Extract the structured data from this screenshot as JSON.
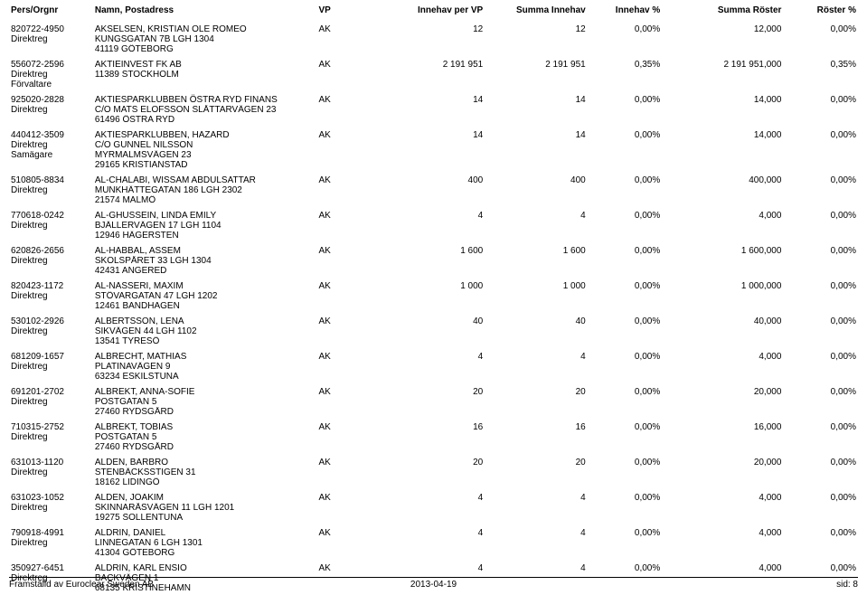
{
  "columns": [
    {
      "key": "pers",
      "label": "Pers/Orgnr",
      "align": "left"
    },
    {
      "key": "namn",
      "label": "Namn, Postadress",
      "align": "left"
    },
    {
      "key": "vp",
      "label": "VP",
      "align": "left"
    },
    {
      "key": "innehav_per_vp",
      "label": "Innehav per VP",
      "align": "right"
    },
    {
      "key": "summa_innehav",
      "label": "Summa Innehav",
      "align": "right"
    },
    {
      "key": "innehav_pct",
      "label": "Innehav %",
      "align": "right"
    },
    {
      "key": "summa_roster",
      "label": "Summa Röster",
      "align": "right"
    },
    {
      "key": "roster_pct",
      "label": "Röster %",
      "align": "right"
    }
  ],
  "entries": [
    {
      "id_lines": [
        "820722-4950",
        "Direktreg"
      ],
      "addr_lines": [
        "AKSELSEN, KRISTIAN OLE ROMEO",
        "KUNGSGATAN 7B LGH 1304",
        "41119 GÖTEBORG"
      ],
      "vp": "AK",
      "ip": "12",
      "si": "12",
      "ipct": "0,00%",
      "sr": "12,000",
      "rpct": "0,00%"
    },
    {
      "id_lines": [
        "556072-2596",
        "Direktreg",
        "Förvaltare"
      ],
      "addr_lines": [
        "AKTIEINVEST FK AB",
        "11389 STOCKHOLM"
      ],
      "vp": "AK",
      "ip": "2 191 951",
      "si": "2 191 951",
      "ipct": "0,35%",
      "sr": "2 191 951,000",
      "rpct": "0,35%"
    },
    {
      "id_lines": [
        "925020-2828",
        "Direktreg"
      ],
      "addr_lines": [
        "AKTIESPARKLUBBEN ÖSTRA RYD FINANS",
        "C/O MATS ELOFSSON SLÅTTARVÄGEN 23",
        "61496 ÖSTRA RYD"
      ],
      "vp": "AK",
      "ip": "14",
      "si": "14",
      "ipct": "0,00%",
      "sr": "14,000",
      "rpct": "0,00%"
    },
    {
      "id_lines": [
        "440412-3509",
        "Direktreg",
        "Samägare"
      ],
      "addr_lines": [
        "AKTIESPARKLUBBEN, HAZARD",
        "C/O GUNNEL NILSSON",
        "MYRMALMSVÄGEN 23",
        "29165 KRISTIANSTAD"
      ],
      "vp": "AK",
      "ip": "14",
      "si": "14",
      "ipct": "0,00%",
      "sr": "14,000",
      "rpct": "0,00%"
    },
    {
      "id_lines": [
        "510805-8834",
        "Direktreg"
      ],
      "addr_lines": [
        "AL-CHALABI, WISSAM ABDULSATTAR",
        "MUNKHÄTTEGATAN 186 LGH 2302",
        "21574 MALMÖ"
      ],
      "vp": "AK",
      "ip": "400",
      "si": "400",
      "ipct": "0,00%",
      "sr": "400,000",
      "rpct": "0,00%"
    },
    {
      "id_lines": [
        "770618-0242",
        "Direktreg"
      ],
      "addr_lines": [
        "AL-GHUSSEIN, LINDA EMILY",
        "BJÄLLERVÄGEN 17 LGH 1104",
        "12946 HÄGERSTEN"
      ],
      "vp": "AK",
      "ip": "4",
      "si": "4",
      "ipct": "0,00%",
      "sr": "4,000",
      "rpct": "0,00%"
    },
    {
      "id_lines": [
        "620826-2656",
        "Direktreg"
      ],
      "addr_lines": [
        "AL-HABBAL, ASSEM",
        "SKOLSPÅRET 33 LGH 1304",
        "42431 ANGERED"
      ],
      "vp": "AK",
      "ip": "1 600",
      "si": "1 600",
      "ipct": "0,00%",
      "sr": "1 600,000",
      "rpct": "0,00%"
    },
    {
      "id_lines": [
        "820423-1172",
        "Direktreg"
      ],
      "addr_lines": [
        "AL-NASSERI, MAXIM",
        "STÖVARGATAN 47 LGH 1202",
        "12461 BANDHAGEN"
      ],
      "vp": "AK",
      "ip": "1 000",
      "si": "1 000",
      "ipct": "0,00%",
      "sr": "1 000,000",
      "rpct": "0,00%"
    },
    {
      "id_lines": [
        "530102-2926",
        "Direktreg"
      ],
      "addr_lines": [
        "ALBERTSSON, LENA",
        "SIKVÄGEN 44 LGH 1102",
        "13541 TYRESÖ"
      ],
      "vp": "AK",
      "ip": "40",
      "si": "40",
      "ipct": "0,00%",
      "sr": "40,000",
      "rpct": "0,00%"
    },
    {
      "id_lines": [
        "681209-1657",
        "Direktreg"
      ],
      "addr_lines": [
        "ALBRECHT, MATHIAS",
        "PLATINAVÄGEN 9",
        "63234 ESKILSTUNA"
      ],
      "vp": "AK",
      "ip": "4",
      "si": "4",
      "ipct": "0,00%",
      "sr": "4,000",
      "rpct": "0,00%"
    },
    {
      "id_lines": [
        "691201-2702",
        "Direktreg"
      ],
      "addr_lines": [
        "ALBREKT, ANNA-SOFIE",
        "POSTGATAN 5",
        "27460 RYDSGÅRD"
      ],
      "vp": "AK",
      "ip": "20",
      "si": "20",
      "ipct": "0,00%",
      "sr": "20,000",
      "rpct": "0,00%"
    },
    {
      "id_lines": [
        "710315-2752",
        "Direktreg"
      ],
      "addr_lines": [
        "ALBREKT, TOBIAS",
        "POSTGATAN 5",
        "27460 RYDSGÅRD"
      ],
      "vp": "AK",
      "ip": "16",
      "si": "16",
      "ipct": "0,00%",
      "sr": "16,000",
      "rpct": "0,00%"
    },
    {
      "id_lines": [
        "631013-1120",
        "Direktreg"
      ],
      "addr_lines": [
        "ALDEN, BARBRO",
        "STENBÄCKSSTIGEN 31",
        "18162 LIDINGÖ"
      ],
      "vp": "AK",
      "ip": "20",
      "si": "20",
      "ipct": "0,00%",
      "sr": "20,000",
      "rpct": "0,00%"
    },
    {
      "id_lines": [
        "631023-1052",
        "Direktreg"
      ],
      "addr_lines": [
        "ALDEN, JOAKIM",
        "SKINNARÅSVÄGEN 11 LGH 1201",
        "19275 SOLLENTUNA"
      ],
      "vp": "AK",
      "ip": "4",
      "si": "4",
      "ipct": "0,00%",
      "sr": "4,000",
      "rpct": "0,00%"
    },
    {
      "id_lines": [
        "790918-4991",
        "Direktreg"
      ],
      "addr_lines": [
        "ALDRIN, DANIEL",
        "LINNÉGATAN 6 LGH 1301",
        "41304 GÖTEBORG"
      ],
      "vp": "AK",
      "ip": "4",
      "si": "4",
      "ipct": "0,00%",
      "sr": "4,000",
      "rpct": "0,00%"
    },
    {
      "id_lines": [
        "350927-6451",
        "Direktreg"
      ],
      "addr_lines": [
        "ALDRIN, KARL ENSIO",
        "BACKVÄGEN 1",
        "68135 KRISTINEHAMN"
      ],
      "vp": "AK",
      "ip": "4",
      "si": "4",
      "ipct": "0,00%",
      "sr": "4,000",
      "rpct": "0,00%"
    }
  ],
  "footer": {
    "left": "Framställd av Euroclear Sweden AB",
    "center": "2013-04-19",
    "right": "sid: 8"
  }
}
